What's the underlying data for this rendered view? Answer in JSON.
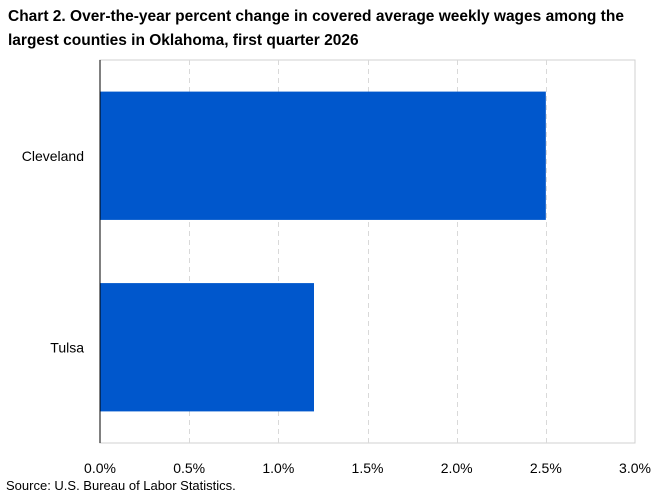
{
  "chart_data": {
    "type": "bar",
    "orientation": "horizontal",
    "title": "Chart 2. Over-the-year percent change in covered average weekly wages among the largest counties in Oklahoma, first quarter 2026",
    "categories": [
      "Cleveland",
      "Tulsa"
    ],
    "values": [
      2.5,
      1.2
    ],
    "unit": "percent",
    "xlim": [
      0,
      3.0
    ],
    "x_ticks": [
      0,
      0.5,
      1.0,
      1.5,
      2.0,
      2.5,
      3.0
    ],
    "x_tick_labels": [
      "0.0%",
      "0.5%",
      "1.0%",
      "1.5%",
      "2.0%",
      "2.5%",
      "3.0%"
    ],
    "xlabel": "",
    "ylabel": "",
    "grid": "vertical dashed",
    "legend": "none",
    "bar_color": "#0057CC",
    "source": "Source: U.S. Bureau of Labor Statistics."
  }
}
